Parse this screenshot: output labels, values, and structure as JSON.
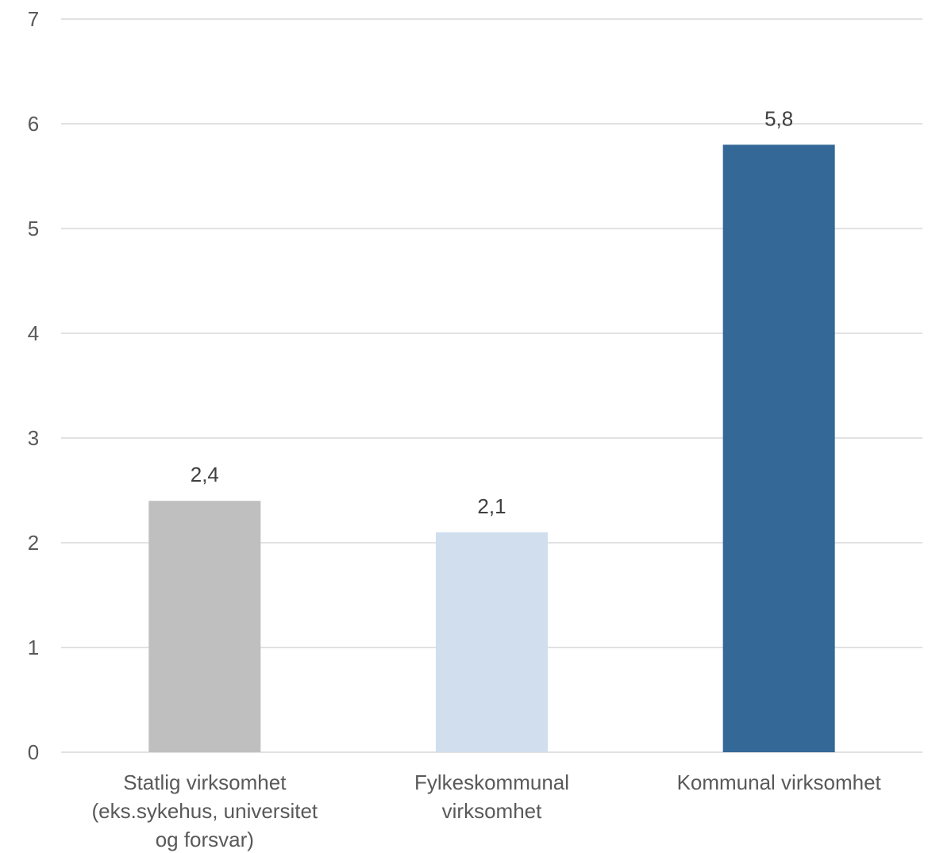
{
  "chart_data": {
    "type": "bar",
    "categories": [
      [
        "Statlig virksomhet",
        "(eks.sykehus, universitet",
        "og forsvar)"
      ],
      [
        "Fylkeskommunal",
        "virksomhet"
      ],
      [
        "Kommunal virksomhet"
      ]
    ],
    "values": [
      2.4,
      2.1,
      5.8
    ],
    "data_labels": [
      "2,4",
      "2,1",
      "5,8"
    ],
    "colors": [
      "#bfbfbf",
      "#d0deee",
      "#336897"
    ],
    "ylim": [
      0,
      7
    ],
    "yticks": [
      0,
      1,
      2,
      3,
      4,
      5,
      6,
      7
    ],
    "grid": true,
    "title": "",
    "xlabel": "",
    "ylabel": ""
  }
}
